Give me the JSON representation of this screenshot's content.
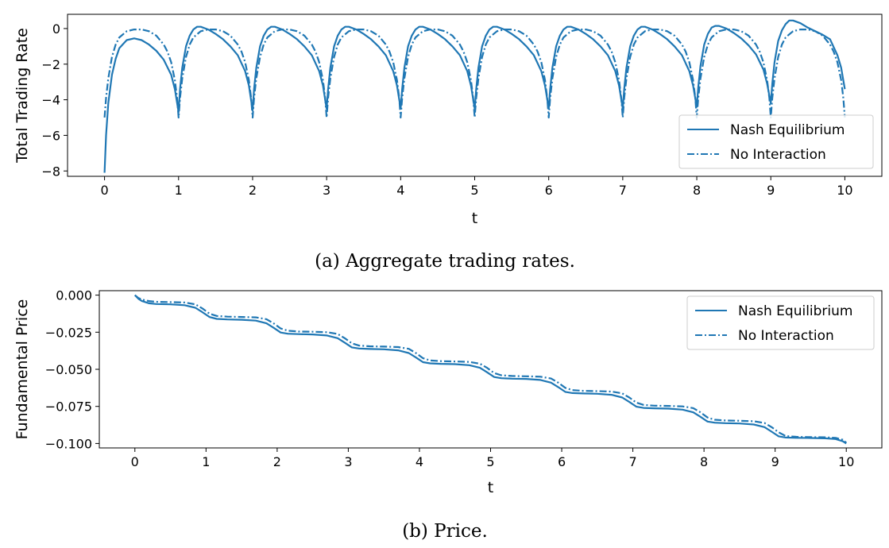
{
  "colors": {
    "series": "#1f77b4",
    "axes": "#000000",
    "legend_border": "#cccccc"
  },
  "chart_data": [
    {
      "type": "line",
      "caption": "(a) Aggregate trading rates.",
      "xlabel": "t",
      "ylabel": "Total Trading Rate",
      "xlim": [
        -0.5,
        10.5
      ],
      "ylim": [
        -8.3,
        0.8
      ],
      "xticks": [
        0,
        1,
        2,
        3,
        4,
        5,
        6,
        7,
        8,
        9,
        10
      ],
      "yticks": [
        0,
        -2,
        -4,
        -6,
        -8
      ],
      "grid": false,
      "legend_position": "lower-right",
      "series": [
        {
          "name": "Nash Equilibrium",
          "style": "solid",
          "x": [
            0,
            0.02,
            0.05,
            0.1,
            0.15,
            0.2,
            0.3,
            0.4,
            0.5,
            0.6,
            0.7,
            0.8,
            0.9,
            0.95,
            1.0,
            1.02,
            1.05,
            1.1,
            1.15,
            1.2,
            1.25,
            1.3,
            1.4,
            1.5,
            1.6,
            1.7,
            1.8,
            1.9,
            1.95,
            2.0,
            2.02,
            2.05,
            2.1,
            2.15,
            2.2,
            2.25,
            2.3,
            2.4,
            2.5,
            2.6,
            2.7,
            2.8,
            2.9,
            2.95,
            3.0,
            3.02,
            3.05,
            3.1,
            3.15,
            3.2,
            3.25,
            3.3,
            3.4,
            3.5,
            3.6,
            3.7,
            3.8,
            3.9,
            3.95,
            4.0,
            4.02,
            4.05,
            4.1,
            4.15,
            4.2,
            4.25,
            4.3,
            4.4,
            4.5,
            4.6,
            4.7,
            4.8,
            4.9,
            4.95,
            5.0,
            5.02,
            5.05,
            5.1,
            5.15,
            5.2,
            5.25,
            5.3,
            5.4,
            5.5,
            5.6,
            5.7,
            5.8,
            5.9,
            5.95,
            6.0,
            6.02,
            6.05,
            6.1,
            6.15,
            6.2,
            6.25,
            6.3,
            6.4,
            6.5,
            6.6,
            6.7,
            6.8,
            6.9,
            6.95,
            7.0,
            7.02,
            7.05,
            7.1,
            7.15,
            7.2,
            7.25,
            7.3,
            7.4,
            7.5,
            7.6,
            7.7,
            7.8,
            7.9,
            7.95,
            8.0,
            8.02,
            8.05,
            8.1,
            8.15,
            8.2,
            8.25,
            8.3,
            8.4,
            8.5,
            8.6,
            8.7,
            8.8,
            8.9,
            8.95,
            9.0,
            9.02,
            9.05,
            9.1,
            9.15,
            9.2,
            9.25,
            9.3,
            9.4,
            9.5,
            9.6,
            9.7,
            9.8,
            9.9,
            9.95,
            10.0
          ],
          "y": [
            -8.1,
            -6.0,
            -4.2,
            -2.6,
            -1.7,
            -1.1,
            -0.65,
            -0.55,
            -0.65,
            -0.9,
            -1.25,
            -1.75,
            -2.6,
            -3.4,
            -4.7,
            -3.4,
            -2.2,
            -1.0,
            -0.4,
            -0.05,
            0.1,
            0.1,
            -0.05,
            -0.3,
            -0.6,
            -1.0,
            -1.5,
            -2.4,
            -3.2,
            -4.6,
            -3.4,
            -2.2,
            -1.0,
            -0.4,
            -0.05,
            0.1,
            0.1,
            -0.05,
            -0.3,
            -0.6,
            -1.0,
            -1.5,
            -2.4,
            -3.2,
            -4.5,
            -3.4,
            -2.2,
            -1.0,
            -0.4,
            -0.05,
            0.1,
            0.1,
            -0.05,
            -0.3,
            -0.6,
            -1.0,
            -1.5,
            -2.4,
            -3.2,
            -4.5,
            -3.4,
            -2.2,
            -1.0,
            -0.4,
            -0.05,
            0.1,
            0.1,
            -0.05,
            -0.3,
            -0.6,
            -1.0,
            -1.5,
            -2.4,
            -3.2,
            -4.5,
            -3.4,
            -2.2,
            -1.0,
            -0.4,
            -0.05,
            0.1,
            0.1,
            -0.05,
            -0.3,
            -0.6,
            -1.0,
            -1.5,
            -2.4,
            -3.2,
            -4.5,
            -3.4,
            -2.2,
            -1.0,
            -0.4,
            -0.05,
            0.1,
            0.1,
            -0.05,
            -0.3,
            -0.6,
            -1.0,
            -1.5,
            -2.4,
            -3.2,
            -4.5,
            -3.4,
            -2.2,
            -1.0,
            -0.4,
            -0.05,
            0.1,
            0.1,
            -0.05,
            -0.3,
            -0.6,
            -1.0,
            -1.5,
            -2.4,
            -3.2,
            -4.4,
            -3.3,
            -2.1,
            -0.9,
            -0.3,
            0.05,
            0.15,
            0.15,
            0.0,
            -0.25,
            -0.55,
            -0.95,
            -1.45,
            -2.3,
            -3.1,
            -4.2,
            -3.1,
            -1.9,
            -0.7,
            -0.1,
            0.25,
            0.45,
            0.45,
            0.3,
            0.05,
            -0.15,
            -0.35,
            -0.6,
            -1.5,
            -2.2,
            -3.4
          ]
        },
        {
          "name": "No Interaction",
          "style": "dashdot",
          "x": [
            0,
            0.02,
            0.05,
            0.1,
            0.15,
            0.2,
            0.3,
            0.4,
            0.5,
            0.6,
            0.7,
            0.8,
            0.85,
            0.9,
            0.95,
            0.98,
            1.0,
            1.02,
            1.05,
            1.1,
            1.15,
            1.2,
            1.3,
            1.4,
            1.5,
            1.6,
            1.7,
            1.8,
            1.85,
            1.9,
            1.95,
            1.98,
            2.0,
            2.02,
            2.05,
            2.1,
            2.15,
            2.2,
            2.3,
            2.4,
            2.5,
            2.6,
            2.7,
            2.8,
            2.85,
            2.9,
            2.95,
            2.98,
            3.0,
            3.02,
            3.05,
            3.1,
            3.15,
            3.2,
            3.3,
            3.4,
            3.5,
            3.6,
            3.7,
            3.8,
            3.85,
            3.9,
            3.95,
            3.98,
            4.0,
            4.02,
            4.05,
            4.1,
            4.15,
            4.2,
            4.3,
            4.4,
            4.5,
            4.6,
            4.7,
            4.8,
            4.85,
            4.9,
            4.95,
            4.98,
            5.0,
            5.02,
            5.05,
            5.1,
            5.15,
            5.2,
            5.3,
            5.4,
            5.5,
            5.6,
            5.7,
            5.8,
            5.85,
            5.9,
            5.95,
            5.98,
            6.0,
            6.02,
            6.05,
            6.1,
            6.15,
            6.2,
            6.3,
            6.4,
            6.5,
            6.6,
            6.7,
            6.8,
            6.85,
            6.9,
            6.95,
            6.98,
            7.0,
            7.02,
            7.05,
            7.1,
            7.15,
            7.2,
            7.3,
            7.4,
            7.5,
            7.6,
            7.7,
            7.8,
            7.85,
            7.9,
            7.95,
            7.98,
            8.0,
            8.02,
            8.05,
            8.1,
            8.15,
            8.2,
            8.3,
            8.4,
            8.5,
            8.6,
            8.7,
            8.8,
            8.85,
            8.9,
            8.95,
            8.98,
            9.0,
            9.02,
            9.05,
            9.1,
            9.15,
            9.2,
            9.3,
            9.4,
            9.5,
            9.6,
            9.7,
            9.8,
            9.85,
            9.9,
            9.95,
            9.98,
            10.0
          ],
          "y": [
            -5.0,
            -3.9,
            -2.8,
            -1.6,
            -0.9,
            -0.5,
            -0.15,
            -0.05,
            -0.05,
            -0.15,
            -0.4,
            -0.9,
            -1.3,
            -1.9,
            -2.9,
            -3.9,
            -5.0,
            -3.9,
            -2.8,
            -1.6,
            -0.9,
            -0.5,
            -0.15,
            -0.05,
            -0.05,
            -0.15,
            -0.4,
            -0.9,
            -1.3,
            -1.9,
            -2.9,
            -3.9,
            -5.0,
            -3.9,
            -2.8,
            -1.6,
            -0.9,
            -0.5,
            -0.15,
            -0.05,
            -0.05,
            -0.15,
            -0.4,
            -0.9,
            -1.3,
            -1.9,
            -2.9,
            -3.9,
            -5.0,
            -3.9,
            -2.8,
            -1.6,
            -0.9,
            -0.5,
            -0.15,
            -0.05,
            -0.05,
            -0.15,
            -0.4,
            -0.9,
            -1.3,
            -1.9,
            -2.9,
            -3.9,
            -5.0,
            -3.9,
            -2.8,
            -1.6,
            -0.9,
            -0.5,
            -0.15,
            -0.05,
            -0.05,
            -0.15,
            -0.4,
            -0.9,
            -1.3,
            -1.9,
            -2.9,
            -3.9,
            -5.0,
            -3.9,
            -2.8,
            -1.6,
            -0.9,
            -0.5,
            -0.15,
            -0.05,
            -0.05,
            -0.15,
            -0.4,
            -0.9,
            -1.3,
            -1.9,
            -2.9,
            -3.9,
            -5.0,
            -3.9,
            -2.8,
            -1.6,
            -0.9,
            -0.5,
            -0.15,
            -0.05,
            -0.05,
            -0.15,
            -0.4,
            -0.9,
            -1.3,
            -1.9,
            -2.9,
            -3.9,
            -5.0,
            -3.9,
            -2.8,
            -1.6,
            -0.9,
            -0.5,
            -0.15,
            -0.05,
            -0.05,
            -0.15,
            -0.4,
            -0.9,
            -1.3,
            -1.9,
            -2.9,
            -3.9,
            -5.0,
            -3.9,
            -2.8,
            -1.6,
            -0.9,
            -0.5,
            -0.15,
            -0.05,
            -0.05,
            -0.15,
            -0.4,
            -0.9,
            -1.3,
            -1.9,
            -2.9,
            -3.9,
            -5.0,
            -3.9,
            -2.8,
            -1.6,
            -0.9,
            -0.5,
            -0.15,
            -0.05,
            -0.05,
            -0.15,
            -0.4,
            -0.9,
            -1.3,
            -1.9,
            -2.9,
            -3.9,
            -5.0
          ]
        }
      ]
    },
    {
      "type": "line",
      "caption": "(b) Price.",
      "xlabel": "t",
      "ylabel": "Fundamental Price",
      "xlim": [
        -0.5,
        10.5
      ],
      "ylim": [
        -0.103,
        0.003
      ],
      "xticks": [
        0,
        1,
        2,
        3,
        4,
        5,
        6,
        7,
        8,
        9,
        10
      ],
      "yticks": [
        0.0,
        -0.025,
        -0.05,
        -0.075,
        -0.1
      ],
      "yticklabels": [
        "0.000",
        "−0.025",
        "−0.050",
        "−0.075",
        "−0.100"
      ],
      "grid": false,
      "legend_position": "upper-right",
      "series": [
        {
          "name": "Nash Equilibrium",
          "style": "solid",
          "x": [
            0,
            0.05,
            0.1,
            0.2,
            0.3,
            0.5,
            0.7,
            0.85,
            0.95,
            1.05,
            1.15,
            1.3,
            1.5,
            1.7,
            1.85,
            1.95,
            2.05,
            2.15,
            2.3,
            2.5,
            2.7,
            2.85,
            2.95,
            3.05,
            3.15,
            3.3,
            3.5,
            3.7,
            3.85,
            3.95,
            4.05,
            4.15,
            4.3,
            4.5,
            4.7,
            4.85,
            4.95,
            5.05,
            5.15,
            5.3,
            5.5,
            5.7,
            5.85,
            5.95,
            6.05,
            6.15,
            6.3,
            6.5,
            6.7,
            6.85,
            6.95,
            7.05,
            7.15,
            7.3,
            7.5,
            7.7,
            7.85,
            7.95,
            8.05,
            8.15,
            8.3,
            8.5,
            8.7,
            8.85,
            8.95,
            9.05,
            9.15,
            9.3,
            9.5,
            9.7,
            9.85,
            9.95,
            10.0
          ],
          "y": [
            0.0,
            -0.0025,
            -0.004,
            -0.0055,
            -0.006,
            -0.0062,
            -0.0068,
            -0.0085,
            -0.0115,
            -0.0148,
            -0.016,
            -0.0164,
            -0.0166,
            -0.0172,
            -0.019,
            -0.022,
            -0.0252,
            -0.026,
            -0.0263,
            -0.0265,
            -0.0272,
            -0.029,
            -0.032,
            -0.0352,
            -0.036,
            -0.0363,
            -0.0365,
            -0.0372,
            -0.039,
            -0.042,
            -0.0452,
            -0.046,
            -0.0463,
            -0.0465,
            -0.0472,
            -0.049,
            -0.052,
            -0.0552,
            -0.056,
            -0.0563,
            -0.0565,
            -0.0572,
            -0.059,
            -0.062,
            -0.0652,
            -0.066,
            -0.0663,
            -0.0665,
            -0.0672,
            -0.069,
            -0.072,
            -0.0752,
            -0.076,
            -0.0763,
            -0.0765,
            -0.0772,
            -0.079,
            -0.082,
            -0.0852,
            -0.086,
            -0.0863,
            -0.0865,
            -0.0872,
            -0.089,
            -0.092,
            -0.0952,
            -0.096,
            -0.0962,
            -0.0963,
            -0.0965,
            -0.097,
            -0.0985,
            -0.1
          ]
        },
        {
          "name": "No Interaction",
          "style": "dashdot",
          "x": [
            0,
            0.05,
            0.1,
            0.2,
            0.3,
            0.5,
            0.7,
            0.85,
            0.95,
            1.05,
            1.15,
            1.3,
            1.5,
            1.7,
            1.85,
            1.95,
            2.05,
            2.15,
            2.3,
            2.5,
            2.7,
            2.85,
            2.95,
            3.05,
            3.15,
            3.3,
            3.5,
            3.7,
            3.85,
            3.95,
            4.05,
            4.15,
            4.3,
            4.5,
            4.7,
            4.85,
            4.95,
            5.05,
            5.15,
            5.3,
            5.5,
            5.7,
            5.85,
            5.95,
            6.05,
            6.15,
            6.3,
            6.5,
            6.7,
            6.85,
            6.95,
            7.05,
            7.15,
            7.3,
            7.5,
            7.7,
            7.85,
            7.95,
            8.05,
            8.15,
            8.3,
            8.5,
            8.7,
            8.85,
            8.95,
            9.05,
            9.15,
            9.3,
            9.5,
            9.7,
            9.85,
            9.95,
            10.0
          ],
          "y": [
            0.0,
            -0.002,
            -0.003,
            -0.004,
            -0.0045,
            -0.0047,
            -0.005,
            -0.0062,
            -0.009,
            -0.0125,
            -0.014,
            -0.0145,
            -0.0147,
            -0.015,
            -0.0162,
            -0.019,
            -0.0225,
            -0.024,
            -0.0245,
            -0.0247,
            -0.025,
            -0.0262,
            -0.029,
            -0.0325,
            -0.034,
            -0.0345,
            -0.0347,
            -0.035,
            -0.0362,
            -0.039,
            -0.0425,
            -0.044,
            -0.0445,
            -0.0447,
            -0.045,
            -0.0462,
            -0.049,
            -0.0525,
            -0.054,
            -0.0545,
            -0.0547,
            -0.055,
            -0.0562,
            -0.059,
            -0.0625,
            -0.064,
            -0.0645,
            -0.0647,
            -0.065,
            -0.0662,
            -0.069,
            -0.0725,
            -0.074,
            -0.0745,
            -0.0747,
            -0.075,
            -0.0762,
            -0.079,
            -0.0825,
            -0.084,
            -0.0845,
            -0.0847,
            -0.085,
            -0.0862,
            -0.089,
            -0.0925,
            -0.095,
            -0.0955,
            -0.0957,
            -0.0958,
            -0.0962,
            -0.0975,
            -0.0995
          ]
        }
      ]
    }
  ]
}
